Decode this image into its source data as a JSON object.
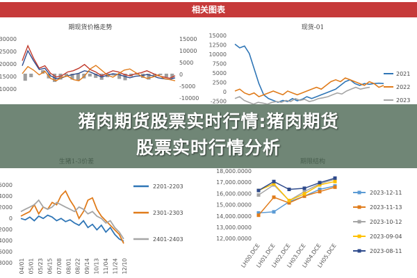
{
  "header": {
    "title": "相关图表"
  },
  "overlay": {
    "line1": "猪肉期货股票实时行情:猪肉期货",
    "line2": "股票实时行情分析"
  },
  "chart_data": [
    {
      "type": "line",
      "title": "期现货价格走势",
      "left_ticks": [
        "30000",
        "25000",
        "20000",
        "15000",
        "10000"
      ],
      "right_ticks": [
        "15000",
        "10000",
        "5000",
        "0",
        "-5000",
        "-10000"
      ],
      "x_ticks": [
        "2021/01/12",
        "2"
      ],
      "series": [
        {
          "color": "#c0392b",
          "role": "left",
          "values": [
            21000,
            27000,
            22000,
            18000,
            19000,
            16000,
            14500,
            15000,
            16500,
            17000,
            18000,
            19500,
            17500,
            16500,
            15000,
            16000,
            17000,
            16500,
            15500,
            15000,
            15800,
            16200,
            17000,
            16000,
            15000,
            14500,
            14000,
            15000
          ]
        },
        {
          "color": "#2e4a8c",
          "role": "left",
          "values": [
            19000,
            25000,
            21000,
            17500,
            18000,
            15000,
            13800,
            14200,
            15000,
            15500,
            16000,
            17000,
            16500,
            15500,
            14500,
            15200,
            15800,
            15500,
            14800,
            14200,
            14800,
            15000,
            15500,
            15000,
            14200,
            13800,
            13500,
            14200
          ]
        },
        {
          "color": "#e07b1a",
          "role": "right",
          "values": [
            0,
            3000,
            1500,
            -500,
            1000,
            -2000,
            -3000,
            -1500,
            -1000,
            -2500,
            -3000,
            -1000,
            2000,
            3500,
            1500,
            -500,
            -1500,
            0,
            1500,
            2000,
            500,
            -1000,
            -2000,
            -1500,
            -500,
            -2000,
            -2500,
            -3000
          ]
        }
      ],
      "bars": [
        -3000,
        -1500,
        0,
        1500,
        -2000,
        -3500,
        -2500,
        -1000,
        -2500,
        -3000,
        -2000,
        -1200,
        -1800,
        -2600,
        -1500,
        -800,
        -2200,
        -2800,
        -1200,
        -500,
        -1800,
        -2500,
        -1000,
        -600,
        -1500,
        -2000
      ]
    },
    {
      "type": "line",
      "title": "现货-01",
      "y_ticks": [
        "15000",
        "12500",
        "10000",
        "7500",
        "5000",
        "2500",
        "0",
        "-2500",
        "-5000"
      ],
      "legend": [
        "2021",
        "2022",
        "2023"
      ],
      "series": [
        {
          "name": "2021",
          "color": "#2e75b6",
          "values": [
            12500,
            11500,
            12000,
            10000,
            6000,
            2000,
            -1000,
            -2000,
            -2500,
            -3000,
            -2500,
            -2800,
            -2000,
            -2600,
            -2200,
            -1500,
            -2000,
            -1500,
            -1000,
            -500,
            0,
            500,
            1500,
            2500,
            3000,
            2000,
            1500,
            2000,
            1800,
            2000,
            2100,
            2000
          ]
        },
        {
          "name": "2022",
          "color": "#e07b1a",
          "values": [
            0,
            500,
            -500,
            -1000,
            -500,
            -1500,
            -1000,
            -500,
            0,
            -500,
            -1000,
            0,
            -500,
            -1000,
            -500,
            0,
            500,
            1000,
            500,
            1500,
            2500,
            3000,
            2500,
            3500,
            3000,
            2500,
            2000,
            1500,
            2500,
            2000,
            1000,
            1500
          ]
        },
        {
          "name": "2023",
          "color": "#a5a5a5",
          "values": [
            -2000,
            -1500,
            -2500,
            -3000,
            -3500,
            -3000,
            -3200,
            -3500,
            -3000,
            -2800,
            -3000,
            -2500,
            -2800,
            -2000,
            -2500,
            -2200,
            -2800,
            -2500,
            -2000,
            -1800,
            -1500,
            -1000,
            -500,
            -800,
            0,
            500,
            1000,
            500,
            800,
            1000
          ]
        }
      ]
    },
    {
      "type": "line",
      "title": "生猪1-3价差",
      "y_ticks": [
        "6000",
        "4000",
        "2000",
        "0",
        "-2000",
        "-4000",
        "-6000",
        "-8000"
      ],
      "x_ticks": [
        "04/01",
        "05/01",
        "05/23",
        "06/15",
        "07/08",
        "08/01",
        "08/22",
        "09/14",
        "10/13",
        "11/04",
        "11/24",
        "12/10"
      ],
      "legend": [
        "2201-2203",
        "2301-2303",
        "2401-2403"
      ],
      "series": [
        {
          "name": "2201-2203",
          "color": "#2e75b6",
          "values": [
            -1500,
            -1800,
            -1200,
            -2000,
            -1000,
            -1500,
            -800,
            -1200,
            -2000,
            -1500,
            -2200,
            -1800,
            -2500,
            -3000,
            -2000,
            -3500,
            -2800,
            -4000,
            -3000,
            -4500,
            -3500,
            -5000,
            -6000,
            -6500
          ]
        },
        {
          "name": "2301-2303",
          "color": "#e07b1a",
          "values": [
            -1000,
            -500,
            0,
            1500,
            -500,
            1000,
            500,
            2000,
            1500,
            3500,
            4500,
            2500,
            1000,
            -1500,
            0,
            2500,
            3000,
            500,
            -1000,
            -2000,
            -3000,
            -4000,
            -5000,
            -7000
          ]
        },
        {
          "name": "2401-2403",
          "color": "#a5a5a5",
          "values": [
            0,
            500,
            1000,
            1500,
            2500,
            1000,
            500,
            1000,
            2000,
            1500,
            1000,
            500,
            0,
            1000,
            500,
            -500,
            0,
            -1000,
            -1500,
            -2500,
            -2000,
            -3500,
            -4500,
            -6000
          ]
        }
      ]
    },
    {
      "type": "line",
      "title": "期限结构",
      "y_ticks": [
        "18,000.0000",
        "17,000.0000",
        "16,000.0000",
        "15,000.0000",
        "14,000.0000",
        "13,000.0000",
        "12,000.0000"
      ],
      "categories": [
        "LH00.DCE",
        "LH01.DCE",
        "LH02.DCE",
        "LH03.DCE",
        "LH04.DCE",
        "LH05.DCE"
      ],
      "ylim": [
        12000,
        18000
      ],
      "legend": [
        "2023-12-11",
        "2023-11-13",
        "2023-10-12",
        "2023-09-04",
        "2023-08-11"
      ],
      "series": [
        {
          "name": "2023-12-11",
          "color": "#5b9bd5",
          "values": [
            14200,
            14300,
            15200,
            15700,
            16300,
            16600
          ]
        },
        {
          "name": "2023-11-13",
          "color": "#e07b1a",
          "values": [
            14000,
            15600,
            15100,
            15700,
            16100,
            16500
          ]
        },
        {
          "name": "2023-10-12",
          "color": "#a5a5a5",
          "values": [
            15800,
            16700,
            15300,
            16100,
            16800,
            17200
          ]
        },
        {
          "name": "2023-09-04",
          "color": "#ffc000",
          "values": [
            16200,
            16800,
            15300,
            15900,
            16700,
            17000
          ]
        },
        {
          "name": "2023-08-11",
          "color": "#2e4a8c",
          "values": [
            16200,
            17000,
            16300,
            16400,
            16900,
            17300
          ]
        }
      ]
    }
  ]
}
